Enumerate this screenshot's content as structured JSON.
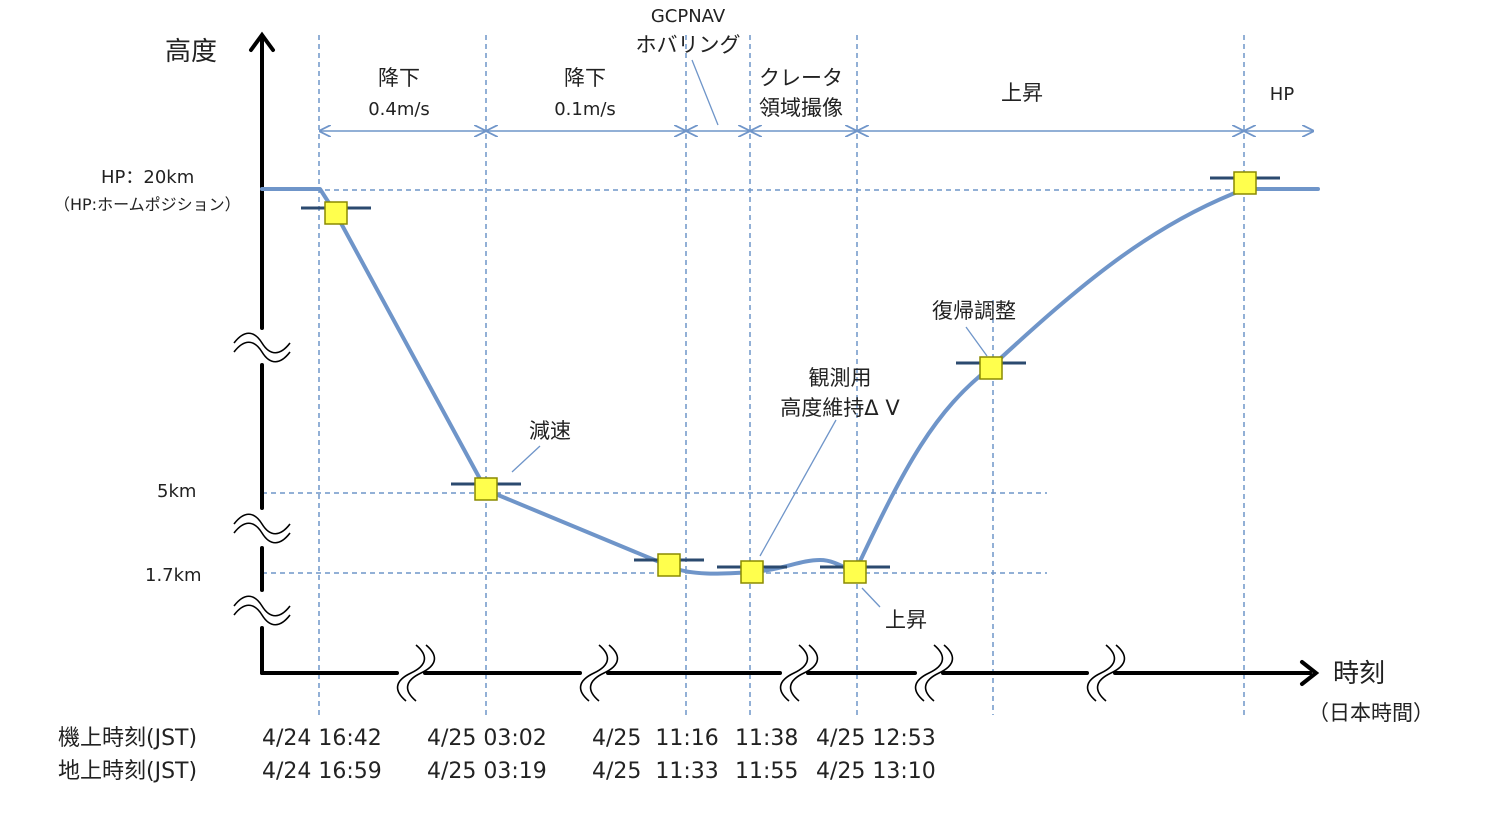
{
  "labels": {
    "y_axis": "高度",
    "x_axis": "時刻",
    "x_axis_sub": "（日本時間）"
  },
  "altitudes": {
    "hp": "HP：20km",
    "hp_note": "（HP:ホームポジション）",
    "a5": "5km",
    "a17": "1.7km"
  },
  "phases": {
    "p1_l1": "降下",
    "p1_l2": "0.4m/s",
    "p2_l1": "降下",
    "p2_l2": "0.1m/s",
    "p3_l1": "GCPNAV",
    "p3_l2": "ホバリング",
    "p4_l1": "クレータ",
    "p4_l2": "領域撮像",
    "p5": "上昇",
    "p6": "HP"
  },
  "annotations": {
    "decel": "減速",
    "hold_l1": "観測用",
    "hold_l2": "高度維持Δ V",
    "ascend": "上昇",
    "recover": "復帰調整"
  },
  "rows": {
    "onboard_label": "機上時刻(JST)",
    "ground_label": "地上時刻(JST)",
    "onboard": [
      "4/24 16:42",
      "4/25 03:02",
      "4/25  11:16",
      "11:38",
      "4/25 12:53"
    ],
    "ground": [
      "4/24 16:59",
      "4/25 03:19",
      "4/25  11:33",
      "11:55",
      "4/25 13:10"
    ]
  },
  "colors": {
    "profile": "#6f95c9",
    "grid": "#6f95c9",
    "marker_fill": "#ffff4d",
    "marker_edge": "#8a8a00",
    "axis": "#000000"
  }
}
